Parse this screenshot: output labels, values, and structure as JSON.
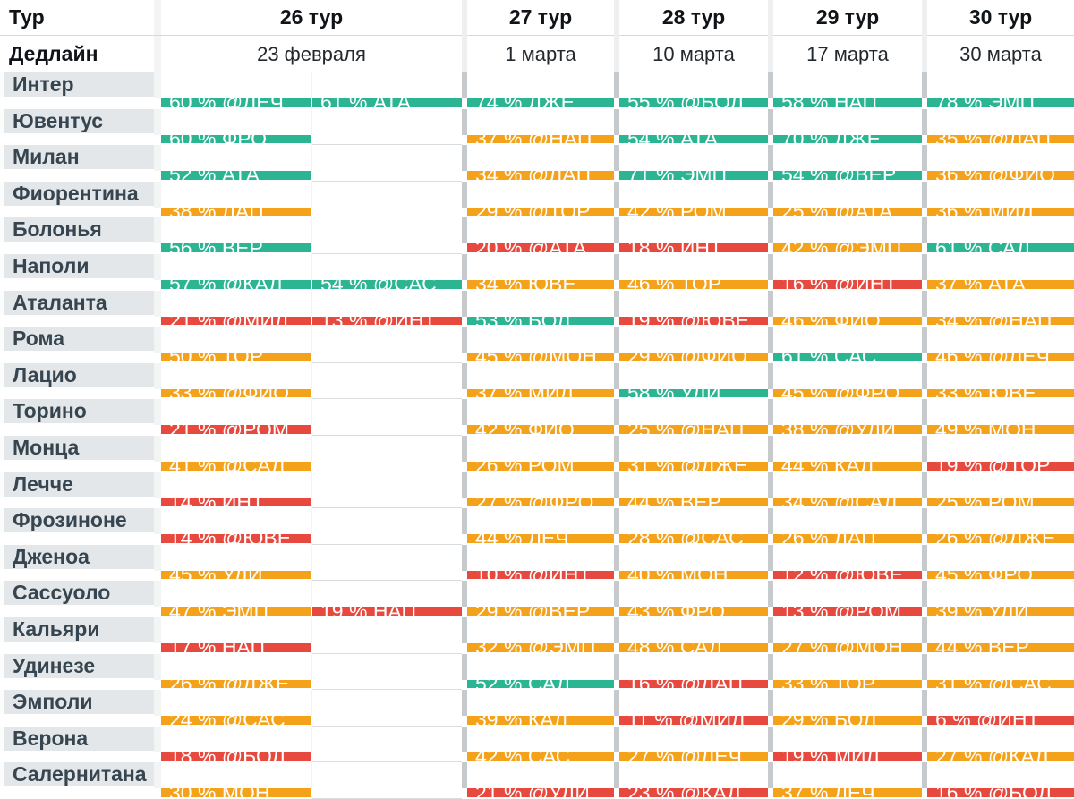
{
  "chart_data": {
    "type": "table",
    "corner_label": "Тур",
    "deadline_label": "Дедлайн",
    "tour_headers": [
      "26 тур",
      "27 тур",
      "28 тур",
      "29 тур",
      "30 тур"
    ],
    "deadlines": [
      "23 февраля",
      "1 марта",
      "10 марта",
      "17 марта",
      "30 марта"
    ],
    "legend_colors": {
      "green": "#2bb592",
      "orange": "#f5a21b",
      "red": "#e8493e",
      "team_column_bg": "#e3e7e9",
      "team_text": "#36454f"
    },
    "teams": [
      {
        "name": "Интер",
        "matches": [
          {
            "text": "60 % @ЛЕЧ",
            "level": "green"
          },
          {
            "text": "61 % АТА",
            "level": "green"
          },
          {
            "text": "74 % ДЖЕ",
            "level": "green"
          },
          {
            "text": "55 % @БОЛ",
            "level": "green"
          },
          {
            "text": "58 % НАП",
            "level": "green"
          },
          {
            "text": "78 % ЭМП",
            "level": "green"
          }
        ]
      },
      {
        "name": "Ювентус",
        "matches": [
          {
            "text": "60 % ФРО",
            "level": "green"
          },
          null,
          {
            "text": "37 % @НАП",
            "level": "orange"
          },
          {
            "text": "54 % АТА",
            "level": "green"
          },
          {
            "text": "70 % ДЖЕ",
            "level": "green"
          },
          {
            "text": "35 % @ЛАЦ",
            "level": "orange"
          }
        ]
      },
      {
        "name": "Милан",
        "matches": [
          {
            "text": "52 % АТА",
            "level": "green"
          },
          null,
          {
            "text": "34 % @ЛАЦ",
            "level": "orange"
          },
          {
            "text": "71 % ЭМП",
            "level": "green"
          },
          {
            "text": "54 % @ВЕР",
            "level": "green"
          },
          {
            "text": "36 % @ФИО",
            "level": "orange"
          }
        ]
      },
      {
        "name": "Фиорентина",
        "matches": [
          {
            "text": "38 % ЛАЦ",
            "level": "orange"
          },
          null,
          {
            "text": "29 % @ТОР",
            "level": "orange"
          },
          {
            "text": "42 % РОМ",
            "level": "orange"
          },
          {
            "text": "25 % @АТА",
            "level": "orange"
          },
          {
            "text": "36 % МИЛ",
            "level": "orange"
          }
        ]
      },
      {
        "name": "Болонья",
        "matches": [
          {
            "text": "56 % ВЕР",
            "level": "green"
          },
          null,
          {
            "text": "20 % @АТА",
            "level": "red"
          },
          {
            "text": "18 % ИНТ",
            "level": "red"
          },
          {
            "text": "42 % @ЭМП",
            "level": "orange"
          },
          {
            "text": "61 % САЛ",
            "level": "green"
          }
        ]
      },
      {
        "name": "Наполи",
        "matches": [
          {
            "text": "57 % @КАЛ",
            "level": "green"
          },
          {
            "text": "54 % @САС",
            "level": "green"
          },
          {
            "text": "34 % ЮВЕ",
            "level": "orange"
          },
          {
            "text": "46 % ТОР",
            "level": "orange"
          },
          {
            "text": "16 % @ИНТ",
            "level": "red"
          },
          {
            "text": "37 % АТА",
            "level": "orange"
          }
        ]
      },
      {
        "name": "Аталанта",
        "matches": [
          {
            "text": "21 % @МИЛ",
            "level": "red"
          },
          {
            "text": "13 % @ИНТ",
            "level": "red"
          },
          {
            "text": "53 % БОЛ",
            "level": "green"
          },
          {
            "text": "19 % @ЮВЕ",
            "level": "red"
          },
          {
            "text": "46 % ФИО",
            "level": "orange"
          },
          {
            "text": "34 % @НАП",
            "level": "orange"
          }
        ]
      },
      {
        "name": "Рома",
        "matches": [
          {
            "text": "50 % ТОР",
            "level": "orange"
          },
          null,
          {
            "text": "45 % @МОН",
            "level": "orange"
          },
          {
            "text": "29 % @ФИО",
            "level": "orange"
          },
          {
            "text": "61 % САС",
            "level": "green"
          },
          {
            "text": "46 % @ЛЕЧ",
            "level": "orange"
          }
        ]
      },
      {
        "name": "Лацио",
        "matches": [
          {
            "text": "33 % @ФИО",
            "level": "orange"
          },
          null,
          {
            "text": "37 % МИЛ",
            "level": "orange"
          },
          {
            "text": "58 % УДИ",
            "level": "green"
          },
          {
            "text": "45 % @ФРО",
            "level": "orange"
          },
          {
            "text": "33 % ЮВЕ",
            "level": "orange"
          }
        ]
      },
      {
        "name": "Торино",
        "matches": [
          {
            "text": "21 % @РОМ",
            "level": "red"
          },
          null,
          {
            "text": "42 % ФИО",
            "level": "orange"
          },
          {
            "text": "25 % @НАП",
            "level": "orange"
          },
          {
            "text": "38 % @УДИ",
            "level": "orange"
          },
          {
            "text": "49 % МОН",
            "level": "orange"
          }
        ]
      },
      {
        "name": "Монца",
        "matches": [
          {
            "text": "41 % @САЛ",
            "level": "orange"
          },
          null,
          {
            "text": "26 % РОМ",
            "level": "orange"
          },
          {
            "text": "31 % @ДЖЕ",
            "level": "orange"
          },
          {
            "text": "44 % КАЛ",
            "level": "orange"
          },
          {
            "text": "19 % @ТОР",
            "level": "red"
          }
        ]
      },
      {
        "name": "Лечче",
        "matches": [
          {
            "text": "14 % ИНТ",
            "level": "red"
          },
          null,
          {
            "text": "27 % @ФРО",
            "level": "orange"
          },
          {
            "text": "44 % ВЕР",
            "level": "orange"
          },
          {
            "text": "34 % @САЛ",
            "level": "orange"
          },
          {
            "text": "25 % РОМ",
            "level": "orange"
          }
        ]
      },
      {
        "name": "Фрозиноне",
        "matches": [
          {
            "text": "14 % @ЮВЕ",
            "level": "red"
          },
          null,
          {
            "text": "44 % ЛЕЧ",
            "level": "orange"
          },
          {
            "text": "28 % @САС",
            "level": "orange"
          },
          {
            "text": "26 % ЛАЦ",
            "level": "orange"
          },
          {
            "text": "26 % @ДЖЕ",
            "level": "orange"
          }
        ]
      },
      {
        "name": "Дженоа",
        "matches": [
          {
            "text": "45 % УДИ",
            "level": "orange"
          },
          null,
          {
            "text": "10 % @ИНТ",
            "level": "red"
          },
          {
            "text": "40 % МОН",
            "level": "orange"
          },
          {
            "text": "12 % @ЮВЕ",
            "level": "red"
          },
          {
            "text": "45 % ФРО",
            "level": "orange"
          }
        ]
      },
      {
        "name": "Сассуоло",
        "matches": [
          {
            "text": "47 % ЭМП",
            "level": "orange"
          },
          {
            "text": "19 % НАП",
            "level": "red"
          },
          {
            "text": "29 % @ВЕР",
            "level": "orange"
          },
          {
            "text": "43 % ФРО",
            "level": "orange"
          },
          {
            "text": "13 % @РОМ",
            "level": "red"
          },
          {
            "text": "39 % УДИ",
            "level": "orange"
          }
        ]
      },
      {
        "name": "Кальяри",
        "matches": [
          {
            "text": "17 % НАП",
            "level": "red"
          },
          null,
          {
            "text": "32 % @ЭМП",
            "level": "orange"
          },
          {
            "text": "48 % САЛ",
            "level": "orange"
          },
          {
            "text": "27 % @МОН",
            "level": "orange"
          },
          {
            "text": "44 % ВЕР",
            "level": "orange"
          }
        ]
      },
      {
        "name": "Удинезе",
        "matches": [
          {
            "text": "26 % @ДЖЕ",
            "level": "orange"
          },
          null,
          {
            "text": "52 % САЛ",
            "level": "green"
          },
          {
            "text": "16 % @ЛАЦ",
            "level": "red"
          },
          {
            "text": "33 % ТОР",
            "level": "orange"
          },
          {
            "text": "31 % @САС",
            "level": "orange"
          }
        ]
      },
      {
        "name": "Эмполи",
        "matches": [
          {
            "text": "24 % @САС",
            "level": "orange"
          },
          null,
          {
            "text": "39 % КАЛ",
            "level": "orange"
          },
          {
            "text": "11 % @МИЛ",
            "level": "red"
          },
          {
            "text": "29 % БОЛ",
            "level": "orange"
          },
          {
            "text": "6 % @ИНТ",
            "level": "red"
          }
        ]
      },
      {
        "name": "Верона",
        "matches": [
          {
            "text": "18 % @БОЛ",
            "level": "red"
          },
          null,
          {
            "text": "42 % САС",
            "level": "orange"
          },
          {
            "text": "27 % @ЛЕЧ",
            "level": "orange"
          },
          {
            "text": "19 % МИЛ",
            "level": "red"
          },
          {
            "text": "27 % @КАЛ",
            "level": "orange"
          }
        ]
      },
      {
        "name": "Салернитана",
        "matches": [
          {
            "text": "30 % МОН",
            "level": "orange"
          },
          null,
          {
            "text": "21 % @УДИ",
            "level": "red"
          },
          {
            "text": "23 % @КАЛ",
            "level": "red"
          },
          {
            "text": "37 % ЛЕЧ",
            "level": "orange"
          },
          {
            "text": "16 % @БОЛ",
            "level": "red"
          }
        ]
      }
    ]
  }
}
